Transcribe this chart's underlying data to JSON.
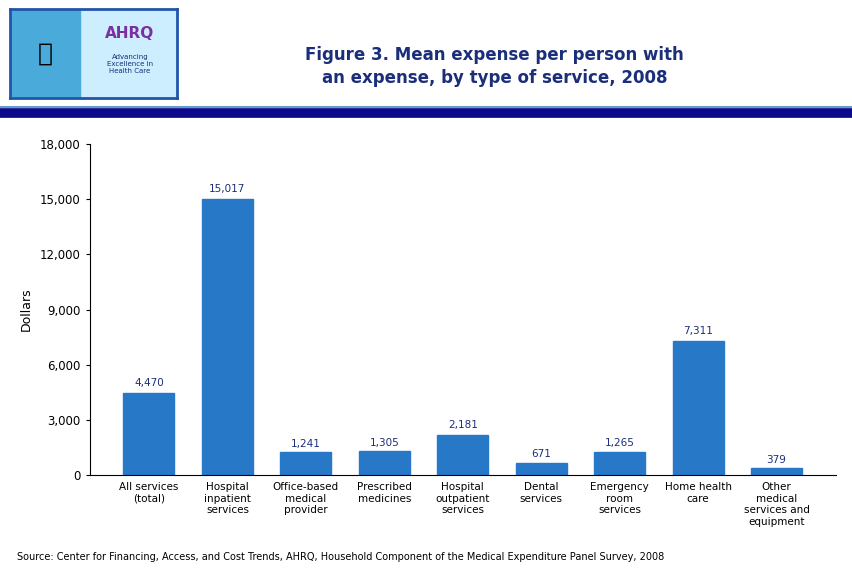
{
  "title_line1": "Figure 3. Mean expense per person with",
  "title_line2": "an expense, by type of service, 2008",
  "categories": [
    "All services\n(total)",
    "Hospital\ninpatient\nservices",
    "Office-based\nmedical\nprovider",
    "Prescribed\nmedicines",
    "Hospital\noutpatient\nservices",
    "Dental\nservices",
    "Emergency\nroom\nservices",
    "Home health\ncare",
    "Other\nmedical\nservices and\nequipment"
  ],
  "values": [
    4470,
    15017,
    1241,
    1305,
    2181,
    671,
    1265,
    7311,
    379
  ],
  "bar_color": "#2878C8",
  "ylabel": "Dollars",
  "ylim": [
    0,
    18000
  ],
  "yticks": [
    0,
    3000,
    6000,
    9000,
    12000,
    15000,
    18000
  ],
  "ytick_labels": [
    "0",
    "3,000",
    "6,000",
    "9,000",
    "12,000",
    "15,000",
    "18,000"
  ],
  "value_labels": [
    "4,470",
    "15,017",
    "1,241",
    "1,305",
    "2,181",
    "671",
    "1,265",
    "7,311",
    "379"
  ],
  "source_text": "Source: Center for Financing, Access, and Cost Trends, AHRQ, Household Component of the Medical Expenditure Panel Survey, 2008",
  "title_color": "#1A2E7A",
  "label_color": "#1A2E7A",
  "header_line_color": "#1A2E7A",
  "logo_bg_color": "#4AABDB",
  "logo_box_color": "#CCEEFF",
  "logo_border_color": "#2255AA",
  "background_color": "#FFFFFF",
  "header_bar_color": "#0A0A8A"
}
